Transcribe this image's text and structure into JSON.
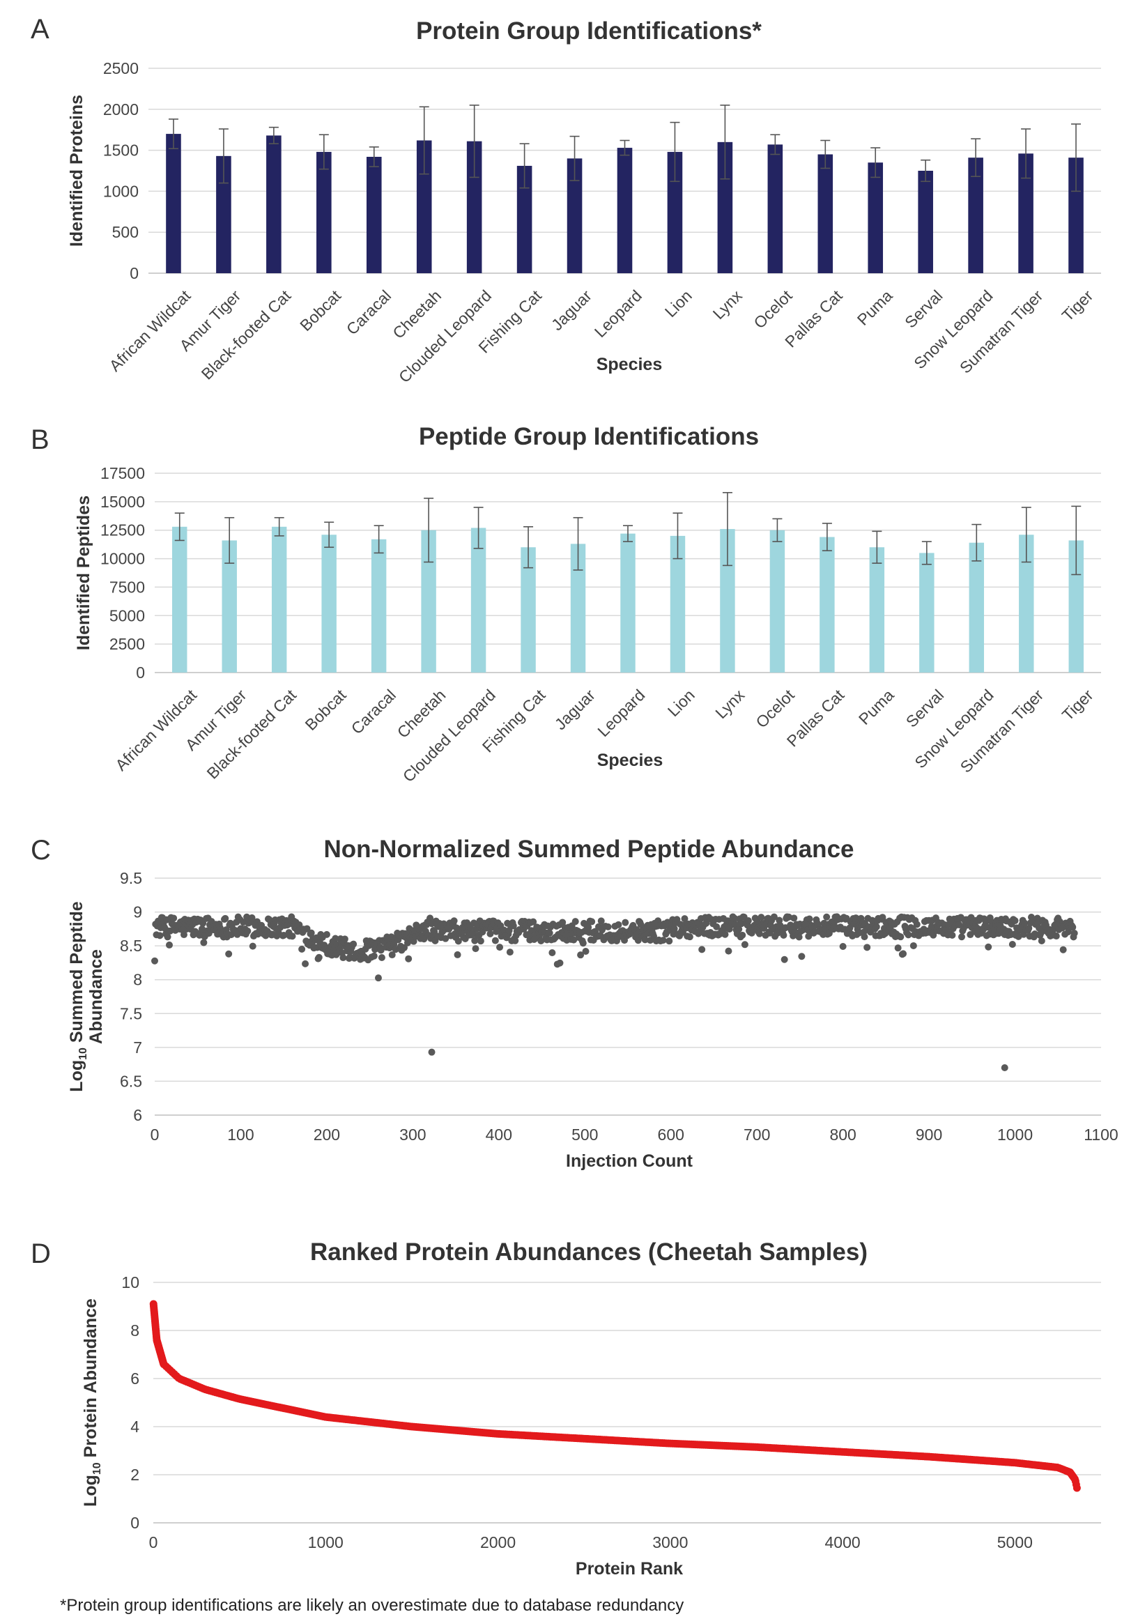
{
  "panels": [
    {
      "letter": "A",
      "chart_data": {
        "type": "bar",
        "title": "Protein Group Identifications*",
        "xlabel": "Species",
        "ylabel": "Identified Proteins",
        "ylim": [
          0,
          2500
        ],
        "yticks": [
          "0",
          "500",
          "1000",
          "1500",
          "2000",
          "2500"
        ],
        "color": "#232461",
        "categories": [
          "African Wildcat",
          "Amur Tiger",
          "Black-footed Cat",
          "Bobcat",
          "Caracal",
          "Cheetah",
          "Clouded Leopard",
          "Fishing Cat",
          "Jaguar",
          "Leopard",
          "Lion",
          "Lynx",
          "Ocelot",
          "Pallas Cat",
          "Puma",
          "Serval",
          "Snow Leopard",
          "Sumatran Tiger",
          "Tiger"
        ],
        "values": [
          1700,
          1430,
          1680,
          1480,
          1420,
          1620,
          1610,
          1310,
          1400,
          1530,
          1480,
          1600,
          1570,
          1450,
          1350,
          1250,
          1410,
          1460,
          1410
        ],
        "errors": [
          180,
          330,
          100,
          210,
          120,
          410,
          440,
          270,
          270,
          90,
          360,
          450,
          120,
          170,
          180,
          130,
          230,
          300,
          410
        ],
        "grid": true
      }
    },
    {
      "letter": "B",
      "chart_data": {
        "type": "bar",
        "title": "Peptide Group Identifications",
        "xlabel": "Species",
        "ylabel": "Identified Peptides",
        "ylim": [
          0,
          17500
        ],
        "yticks": [
          "0",
          "2500",
          "5000",
          "7500",
          "10000",
          "12500",
          "15000",
          "17500"
        ],
        "color": "#9ed6de",
        "categories": [
          "African Wildcat",
          "Amur Tiger",
          "Black-footed Cat",
          "Bobcat",
          "Caracal",
          "Cheetah",
          "Clouded Leopard",
          "Fishing Cat",
          "Jaguar",
          "Leopard",
          "Lion",
          "Lynx",
          "Ocelot",
          "Pallas Cat",
          "Puma",
          "Serval",
          "Snow Leopard",
          "Sumatran Tiger",
          "Tiger"
        ],
        "values": [
          12800,
          11600,
          12800,
          12100,
          11700,
          12500,
          12700,
          11000,
          11300,
          12200,
          12000,
          12600,
          12500,
          11900,
          11000,
          10500,
          11400,
          12100,
          11600
        ],
        "errors": [
          1200,
          2000,
          800,
          1100,
          1200,
          2800,
          1800,
          1800,
          2300,
          700,
          2000,
          3200,
          1000,
          1200,
          1400,
          1000,
          1600,
          2400,
          3000
        ],
        "grid": true
      }
    },
    {
      "letter": "C",
      "chart_data": {
        "type": "scatter",
        "title": "Non-Normalized Summed Peptide Abundance",
        "xlabel": "Injection Count",
        "ylabel_line1": "Log",
        "ylabel_sub": "10",
        "ylabel_line1_rest": " Summed Peptide",
        "ylabel_line2": "Abundance",
        "xlim": [
          0,
          1100
        ],
        "ylim": [
          6,
          9.5
        ],
        "xticks": [
          "0",
          "100",
          "200",
          "300",
          "400",
          "500",
          "600",
          "700",
          "800",
          "900",
          "1000",
          "1100"
        ],
        "yticks": [
          "6",
          "6.5",
          "7",
          "7.5",
          "8",
          "8.5",
          "9",
          "9.5"
        ],
        "color": "#595959",
        "n_points": 1070,
        "outliers": [
          [
            322,
            6.93
          ],
          [
            988,
            6.7
          ]
        ],
        "grid": true
      }
    },
    {
      "letter": "D",
      "chart_data": {
        "type": "scatter",
        "title": "Ranked Protein Abundances (Cheetah Samples)",
        "xlabel": "Protein Rank",
        "ylabel_prefix": "Log",
        "ylabel_sub": "10",
        "ylabel_rest": " Protein Abundance",
        "xlim": [
          0,
          5500
        ],
        "ylim": [
          0,
          10
        ],
        "xticks": [
          "0",
          "1000",
          "2000",
          "3000",
          "4000",
          "5000"
        ],
        "yticks": [
          "0",
          "2",
          "4",
          "6",
          "8",
          "10"
        ],
        "color": "#e31a1c",
        "n_points": 5360,
        "curve_anchors": [
          [
            1,
            9.1
          ],
          [
            20,
            7.6
          ],
          [
            60,
            6.6
          ],
          [
            150,
            6.0
          ],
          [
            300,
            5.55
          ],
          [
            500,
            5.15
          ],
          [
            1000,
            4.4
          ],
          [
            1500,
            4.0
          ],
          [
            2000,
            3.7
          ],
          [
            2500,
            3.5
          ],
          [
            3000,
            3.3
          ],
          [
            3500,
            3.15
          ],
          [
            4000,
            2.95
          ],
          [
            4500,
            2.75
          ],
          [
            5000,
            2.5
          ],
          [
            5250,
            2.3
          ],
          [
            5320,
            2.1
          ],
          [
            5350,
            1.8
          ],
          [
            5360,
            1.45
          ]
        ],
        "grid": true
      }
    }
  ],
  "footnote": "*Protein group identifications are likely an overestimate due to database redundancy"
}
